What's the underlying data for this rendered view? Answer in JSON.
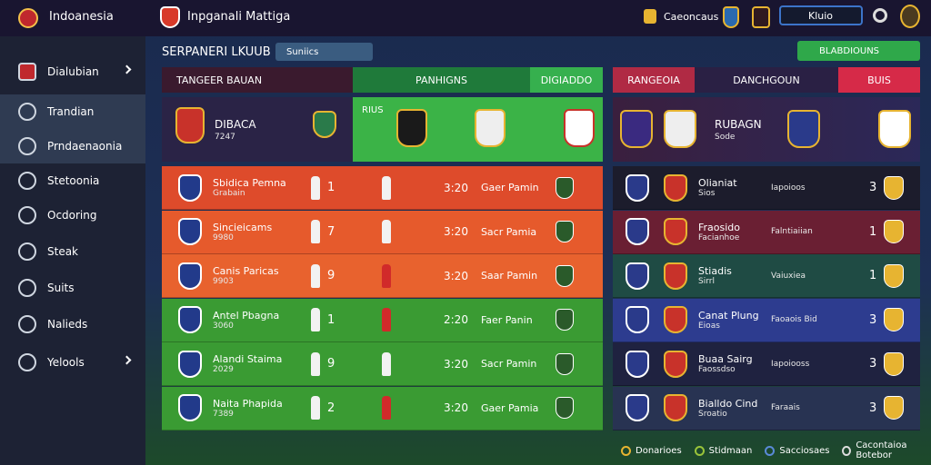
{
  "header": {
    "brand": "Indoanesia",
    "title": "Inpganali Mattiga",
    "status": "Caeoncaus",
    "search": "Kluio"
  },
  "sidebar": {
    "items": [
      "Dialubian",
      "Trandian",
      "Prndaenaonia",
      "Stetoonia",
      "Ocdoring",
      "Steak",
      "Suits",
      "Nalieds",
      "Yelools"
    ]
  },
  "toolbar": {
    "title": "SERPANERI LKUUB",
    "button": "Suniics",
    "action": "BLABDIOUNS"
  },
  "left": {
    "tabs": [
      "TANGEER BAUAN",
      "PANHIGNS",
      "DIGIADDO"
    ],
    "featured": {
      "name": "DIBACA",
      "sub": "7247",
      "tag": "RIUS"
    },
    "rows": [
      {
        "name": "Sbidica Pemna",
        "sub": "Grabain",
        "num": "1",
        "score": "3:20",
        "venue": "Gaer Pamin"
      },
      {
        "name": "Sincieicams",
        "sub": "9980",
        "num": "7",
        "score": "3:20",
        "venue": "Sacr Pamia"
      },
      {
        "name": "Canis Paricas",
        "sub": "9903",
        "num": "9",
        "score": "3:20",
        "venue": "Saar Pamin"
      },
      {
        "name": "Antel Pbagna",
        "sub": "3060",
        "num": "1",
        "score": "2:20",
        "venue": "Faer Panin"
      },
      {
        "name": "Alandi Staima",
        "sub": "2029",
        "num": "9",
        "score": "3:20",
        "venue": "Sacr Pamin"
      },
      {
        "name": "Naita Phapida",
        "sub": "7389",
        "num": "2",
        "score": "3:20",
        "venue": "Gaer Pamia"
      }
    ]
  },
  "right": {
    "tabs": [
      "RANGEOIA",
      "DANCHGOUN",
      "BUIS"
    ],
    "featured": {
      "name": "RUBAGN",
      "sub": "Sode"
    },
    "rows": [
      {
        "name": "Olianiat",
        "sub": "Sios",
        "info": "Iapoioos",
        "num": "3"
      },
      {
        "name": "Fraosido",
        "sub": "Facianhoe",
        "info": "Falntiaiian",
        "num": "1"
      },
      {
        "name": "Stiadis",
        "sub": "Sirrl",
        "info": "Vaiuxiea",
        "num": "1"
      },
      {
        "name": "Canat Plung",
        "sub": "Eioas",
        "info": "Faoaois Bid",
        "num": "3"
      },
      {
        "name": "Buaa Sairg",
        "sub": "Faossdso",
        "info": "Iapoiooss",
        "num": "3"
      },
      {
        "name": "Bialldo Cind",
        "sub": "Sroatio",
        "info": "Faraais",
        "num": "3"
      }
    ]
  },
  "footer": {
    "items": [
      "Donarioes",
      "Stidmaan",
      "Sacciosaes",
      "Cacontaioa Botebor"
    ]
  }
}
